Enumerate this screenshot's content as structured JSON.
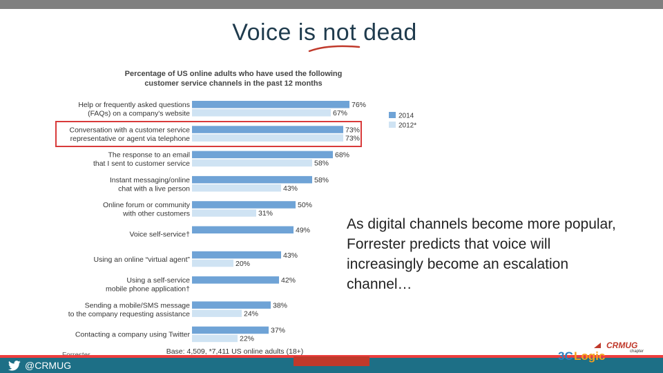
{
  "slide": {
    "title": "Voice is not dead",
    "body_text": "As digital channels become more popular, Forrester predicts that voice will increasingly become an escalation channel…",
    "twitter_handle": "@CRMUG",
    "logo": {
      "text_3c": "3C",
      "text_logic": "Logic",
      "text_crmug": "CRMUG",
      "text_chapter": "chapter"
    },
    "colors": {
      "top_bar": "#7f7f7f",
      "bottom_red": "#ee3d3d",
      "bottom_teal": "#1d6f86",
      "title": "#1f3b4d",
      "highlight_box": "#d83a3a"
    }
  },
  "chart_data": {
    "type": "bar",
    "orientation": "horizontal",
    "title": "Percentage of US online adults who have used the following customer service channels in the past 12 months",
    "title_lines": [
      "Percentage of US online adults who have used the following",
      "customer service channels in the past 12 months"
    ],
    "categories": [
      [
        "Help or frequently asked questions",
        "(FAQs) on a company's website"
      ],
      [
        "Conversation with a customer service",
        "representative or agent via telephone"
      ],
      [
        "The response to an email",
        "that I sent to customer service"
      ],
      [
        "Instant messaging/online",
        "chat with a live person"
      ],
      [
        "Online forum or community",
        "with other customers"
      ],
      [
        "Voice self-service†"
      ],
      [
        "Using an online “virtual agent”"
      ],
      [
        "Using a self-service",
        "mobile phone application†"
      ],
      [
        "Sending a mobile/SMS message",
        "to the company requesting assistance"
      ],
      [
        "Contacting a company using Twitter"
      ]
    ],
    "series": [
      {
        "name": "2014",
        "color": "#6fa3d6",
        "values": [
          76,
          73,
          68,
          58,
          50,
          49,
          43,
          42,
          38,
          37
        ]
      },
      {
        "name": "2012*",
        "color": "#cfe3f3",
        "values": [
          67,
          73,
          58,
          43,
          31,
          null,
          20,
          null,
          24,
          22
        ]
      }
    ],
    "highlighted_category_index": 1,
    "xlim": [
      0,
      100
    ],
    "legend": "right",
    "base_note": "Base: 4,509, *7,411 US online adults (18+)",
    "source": "Forrester"
  }
}
